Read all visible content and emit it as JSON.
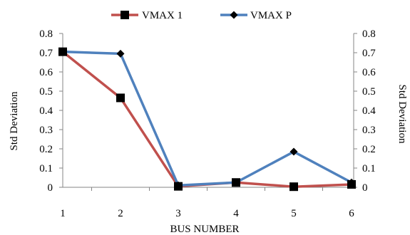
{
  "chart_data": {
    "type": "line",
    "title": "",
    "xlabel": "BUS NUMBER",
    "ylabel": "Std Deviation",
    "ylabel_right": "Std Deviation",
    "x": [
      1,
      2,
      3,
      4,
      5,
      6
    ],
    "ylim": [
      0,
      0.8
    ],
    "yticks": [
      0,
      0.1,
      0.2,
      0.3,
      0.4,
      0.5,
      0.6,
      0.7,
      0.8
    ],
    "grid": false,
    "legend_position": "top-center",
    "series": [
      {
        "name": "VMAX 1",
        "values": [
          0.705,
          0.465,
          0.005,
          0.025,
          0.003,
          0.015
        ],
        "color": "#C0504D",
        "marker": "square"
      },
      {
        "name": "VMAX P",
        "values": [
          0.705,
          0.695,
          0.01,
          0.025,
          0.185,
          0.025
        ],
        "color": "#4F81BD",
        "marker": "diamond"
      }
    ]
  }
}
